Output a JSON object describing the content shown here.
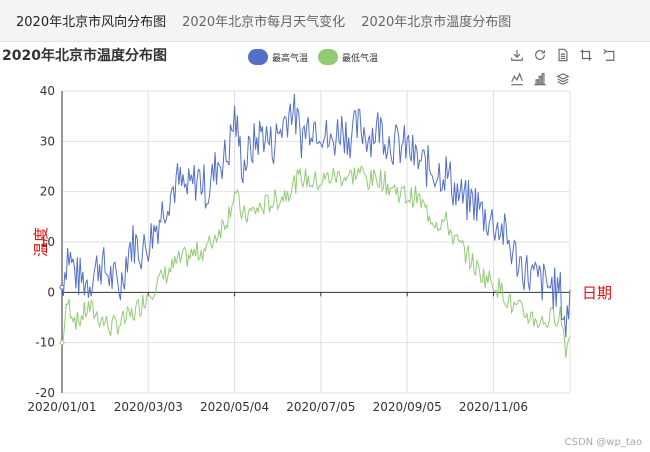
{
  "tabs": [
    {
      "label": "2020年北京市风向分布图"
    },
    {
      "label": "2020年北京市每月天气变化"
    },
    {
      "label": "2020年北京市温度分布图"
    }
  ],
  "active_tab": 0,
  "title": "2020年北京市温度分布图",
  "legend": [
    {
      "label": "最高气温",
      "color": "#5470c6"
    },
    {
      "label": "最低气温",
      "color": "#91cc75"
    }
  ],
  "toolbox": [
    {
      "name": "download-icon"
    },
    {
      "name": "refresh-icon"
    },
    {
      "name": "data-view-icon"
    },
    {
      "name": "zoom-icon"
    },
    {
      "name": "zoom-reset-icon"
    },
    {
      "name": "line-chart-icon"
    },
    {
      "name": "bar-chart-icon"
    },
    {
      "name": "stack-icon"
    }
  ],
  "watermark": "CSDN @wp_tao",
  "chart_data": {
    "type": "line",
    "title": "2020年北京市温度分布图",
    "xlabel": "日期",
    "ylabel": "温度",
    "ylim": [
      -20,
      40
    ],
    "yticks": [
      -20,
      -10,
      0,
      10,
      20,
      30,
      40
    ],
    "xlim": [
      "2020-01-01",
      "2020-12-31"
    ],
    "xticks": [
      "2020/01/01",
      "2020/03/03",
      "2020/05/04",
      "2020/07/05",
      "2020/09/05",
      "2020/11/06"
    ],
    "grid": true,
    "legend_position": "top",
    "anchors": [
      [
        "2020-01-01",
        1,
        -10
      ],
      [
        "2020-01-05",
        8,
        -2
      ],
      [
        "2020-01-12",
        3,
        -6
      ],
      [
        "2020-01-20",
        2,
        -3
      ],
      [
        "2020-01-28",
        6,
        -5
      ],
      [
        "2020-02-05",
        3,
        -7
      ],
      [
        "2020-02-12",
        1,
        -6
      ],
      [
        "2020-02-18",
        9,
        -5
      ],
      [
        "2020-02-22",
        10,
        -4
      ],
      [
        "2020-02-28",
        8,
        -2
      ],
      [
        "2020-03-03",
        10,
        0
      ],
      [
        "2020-03-10",
        14,
        2
      ],
      [
        "2020-03-17",
        19,
        4
      ],
      [
        "2020-03-24",
        22,
        6
      ],
      [
        "2020-03-31",
        20,
        7
      ],
      [
        "2020-04-08",
        23,
        8
      ],
      [
        "2020-04-15",
        20,
        9
      ],
      [
        "2020-04-22",
        26,
        12
      ],
      [
        "2020-04-29",
        27,
        15
      ],
      [
        "2020-05-04",
        35,
        20
      ],
      [
        "2020-05-10",
        25,
        15
      ],
      [
        "2020-05-17",
        29,
        16
      ],
      [
        "2020-05-24",
        32,
        17
      ],
      [
        "2020-05-31",
        29,
        18
      ],
      [
        "2020-06-07",
        33,
        19
      ],
      [
        "2020-06-14",
        37,
        21
      ],
      [
        "2020-06-21",
        31,
        23
      ],
      [
        "2020-06-28",
        34,
        22
      ],
      [
        "2020-07-05",
        33,
        22
      ],
      [
        "2020-07-12",
        29,
        23
      ],
      [
        "2020-07-19",
        33,
        23
      ],
      [
        "2020-07-26",
        31,
        23
      ],
      [
        "2020-08-02",
        33,
        24
      ],
      [
        "2020-08-09",
        31,
        22
      ],
      [
        "2020-08-16",
        33,
        23
      ],
      [
        "2020-08-23",
        30,
        21
      ],
      [
        "2020-08-30",
        29,
        20
      ],
      [
        "2020-09-05",
        29,
        19
      ],
      [
        "2020-09-12",
        26,
        19
      ],
      [
        "2020-09-19",
        25,
        16
      ],
      [
        "2020-09-26",
        24,
        14
      ],
      [
        "2020-10-03",
        24,
        14
      ],
      [
        "2020-10-10",
        20,
        10
      ],
      [
        "2020-10-17",
        18,
        8
      ],
      [
        "2020-10-24",
        18,
        5
      ],
      [
        "2020-10-31",
        15,
        3
      ],
      [
        "2020-11-06",
        14,
        2
      ],
      [
        "2020-11-13",
        12,
        0
      ],
      [
        "2020-11-20",
        8,
        -3
      ],
      [
        "2020-11-27",
        5,
        -4
      ],
      [
        "2020-12-04",
        3,
        -5
      ],
      [
        "2020-12-11",
        2,
        -6
      ],
      [
        "2020-12-18",
        1,
        -5
      ],
      [
        "2020-12-24",
        0,
        -4
      ],
      [
        "2020-12-28",
        -7,
        -11
      ],
      [
        "2020-12-31",
        -1,
        -9
      ]
    ]
  }
}
